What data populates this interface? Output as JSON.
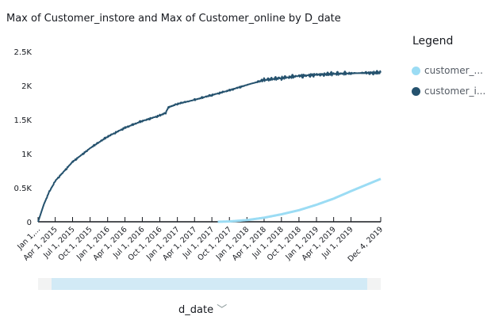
{
  "chart_data": {
    "type": "line",
    "title": "Max of Customer_instore and Max of Customer_online by D_date",
    "xlabel": "d_date",
    "ylabel": "",
    "ylim": [
      0,
      2500
    ],
    "yticks": [
      {
        "v": 0,
        "label": "0"
      },
      {
        "v": 500,
        "label": "0.5K"
      },
      {
        "v": 1000,
        "label": "1K"
      },
      {
        "v": 1500,
        "label": "1.5K"
      },
      {
        "v": 2000,
        "label": "2K"
      },
      {
        "v": 2500,
        "label": "2.5K"
      }
    ],
    "xrange": [
      "2015-01-01",
      "2019-12-04"
    ],
    "xticks": [
      "Jan 1,...",
      "Apr 1, 2015",
      "Jul 1, 2015",
      "Oct 1, 2015",
      "Jan 1, 2016",
      "Apr 1, 2016",
      "Jul 1, 2016",
      "Oct 1, 2016",
      "Jan 1, 2017",
      "Apr 1, 2017",
      "Jul 1, 2017",
      "Oct 1, 2017",
      "Jan 1, 2018",
      "Apr 1, 2018",
      "Jul 1, 2018",
      "Oct 1, 2018",
      "Jan 1, 2019",
      "Apr 1, 2019",
      "Jul 1, 2019",
      "Dec 4, 2019"
    ],
    "legend": {
      "title": "Legend",
      "placement": "right"
    },
    "series": [
      {
        "name": "customer_...",
        "color": "#9bdcf4",
        "x": [
          "2017-08-01",
          "2017-10-01",
          "2018-01-01",
          "2018-04-01",
          "2018-07-01",
          "2018-10-01",
          "2019-01-01",
          "2019-04-01",
          "2019-07-01",
          "2019-12-04"
        ],
        "values": [
          0,
          5,
          25,
          60,
          110,
          170,
          250,
          340,
          450,
          630
        ]
      },
      {
        "name": "customer_i...",
        "color": "#25526e",
        "x": [
          "2015-01-01",
          "2015-02-01",
          "2015-03-01",
          "2015-04-01",
          "2015-07-01",
          "2015-10-01",
          "2016-01-01",
          "2016-04-01",
          "2016-07-01",
          "2016-10-01",
          "2016-11-01",
          "2016-11-15",
          "2017-01-01",
          "2017-04-01",
          "2017-07-01",
          "2017-10-01",
          "2018-01-01",
          "2018-04-01",
          "2018-07-01",
          "2018-10-01",
          "2019-01-01",
          "2019-04-01",
          "2019-07-01",
          "2019-12-04"
        ],
        "values": [
          0,
          260,
          440,
          600,
          880,
          1080,
          1250,
          1380,
          1480,
          1560,
          1600,
          1680,
          1730,
          1790,
          1860,
          1930,
          2010,
          2080,
          2110,
          2140,
          2160,
          2170,
          2180,
          2190
        ]
      }
    ]
  }
}
